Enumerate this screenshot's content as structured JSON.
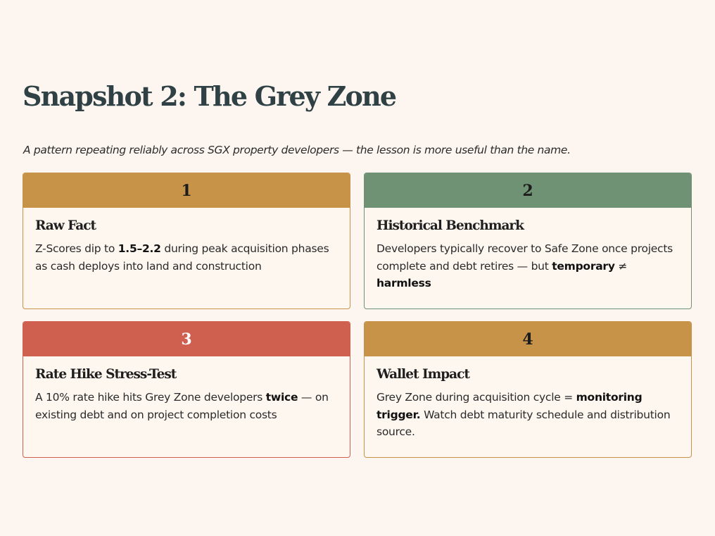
{
  "page": {
    "title": "Snapshot 2: The Grey Zone",
    "subtitle": "A pattern repeating reliably across SGX property developers — the lesson is more useful than the name."
  },
  "colors": {
    "background": "#fdf6f0",
    "title": "#2f4145",
    "gold": "#c69349",
    "green": "#6f9174",
    "red": "#cf6050"
  },
  "cards": [
    {
      "number": "1",
      "title": "Raw Fact",
      "text": [
        {
          "t": "Z-Scores dip to "
        },
        {
          "t": "1.5–2.2",
          "b": true
        },
        {
          "t": " during peak acquisition phases as cash deploys into land and construction"
        }
      ]
    },
    {
      "number": "2",
      "title": "Historical Benchmark",
      "text": [
        {
          "t": "Developers typically recover to Safe Zone once projects complete and debt retires — but "
        },
        {
          "t": "temporary",
          "b": true
        },
        {
          "t": " ≠ "
        },
        {
          "t": "harmless",
          "b": true
        }
      ]
    },
    {
      "number": "3",
      "title": "Rate Hike Stress-Test",
      "text": [
        {
          "t": "A 10% rate hike hits Grey Zone developers "
        },
        {
          "t": "twice",
          "b": true
        },
        {
          "t": " — on existing debt and on project completion costs"
        }
      ]
    },
    {
      "number": "4",
      "title": "Wallet Impact",
      "text": [
        {
          "t": "Grey Zone during acquisition cycle = "
        },
        {
          "t": "monitoring trigger.",
          "b": true
        },
        {
          "t": " Watch debt maturity schedule and distribution source."
        }
      ]
    }
  ]
}
